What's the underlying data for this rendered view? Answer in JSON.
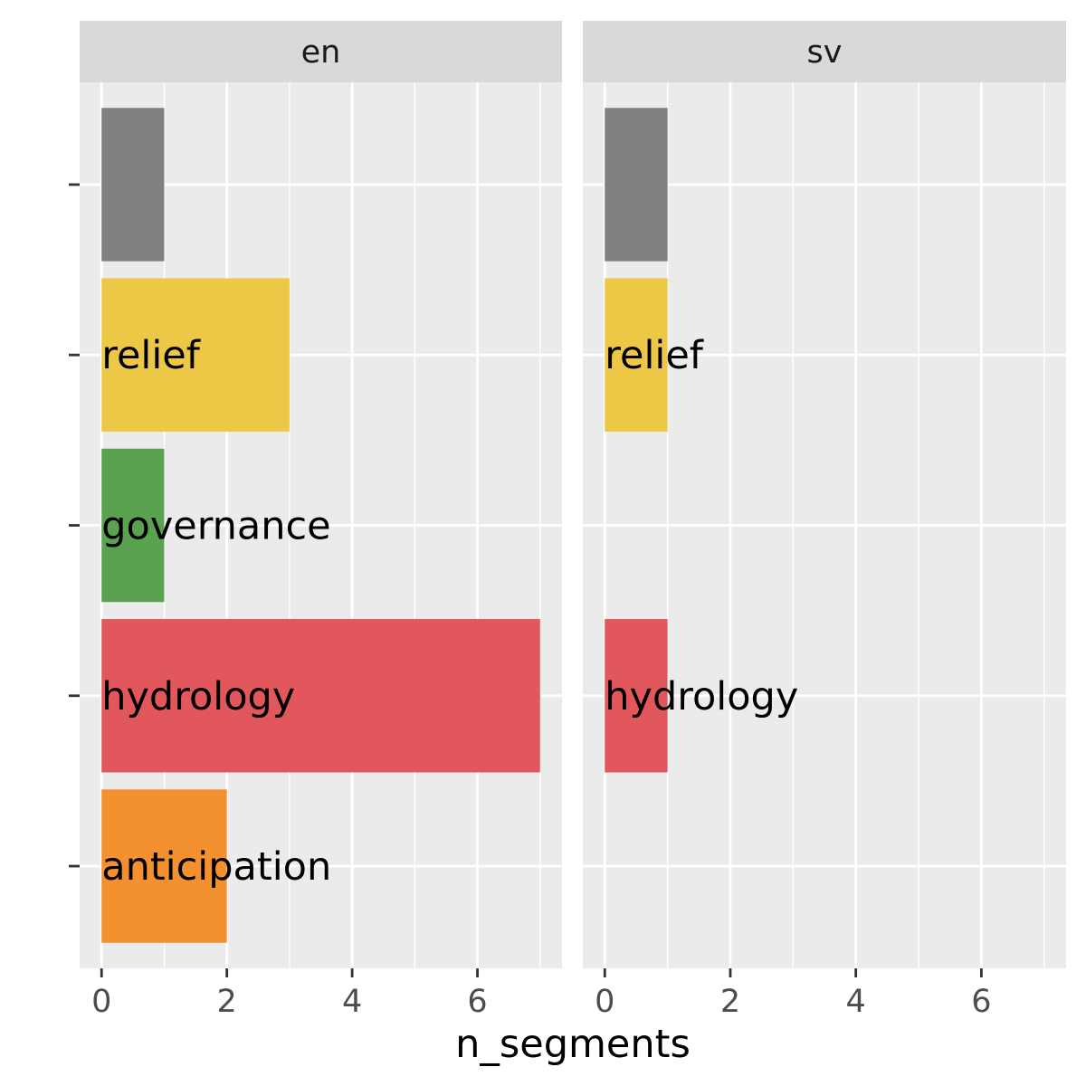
{
  "chart_data": {
    "type": "bar",
    "orientation": "horizontal",
    "facets": [
      "en",
      "sv"
    ],
    "categories": [
      "",
      "relief",
      "governance",
      "hydrology",
      "anticipation"
    ],
    "category_colors": [
      "#808080",
      "#ecc846",
      "#5aa150",
      "#e1575b",
      "#f39130"
    ],
    "panels": [
      {
        "facet": "en",
        "values": [
          1,
          3,
          1,
          7,
          2
        ],
        "labels": [
          "",
          "relief",
          "governance",
          "hydrology",
          "anticipation"
        ]
      },
      {
        "facet": "sv",
        "values": [
          1,
          1,
          0,
          1,
          0
        ],
        "labels": [
          "",
          "relief",
          "",
          "hydrology",
          ""
        ]
      }
    ],
    "xlabel": "n_segments",
    "ylabel": "",
    "xlim": [
      -0.35,
      7.35
    ],
    "x_ticks": [
      0,
      2,
      4,
      6
    ],
    "x_tick_labels": [
      "0",
      "2",
      "4",
      "6"
    ],
    "grid": true
  }
}
